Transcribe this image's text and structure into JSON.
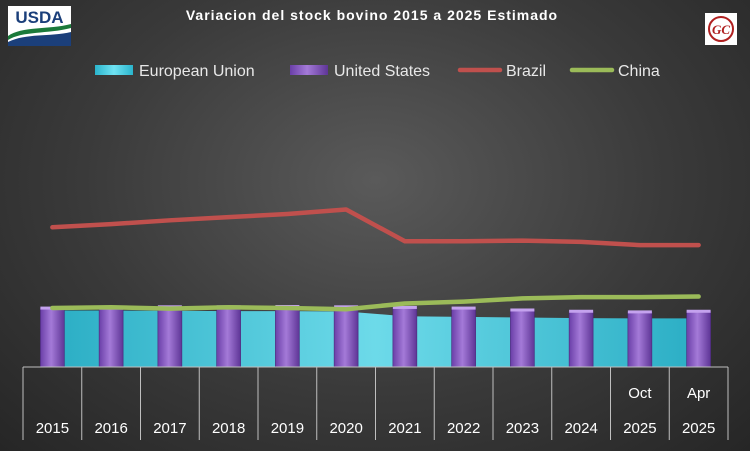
{
  "logos": {
    "left": "USDA",
    "right": "GC"
  },
  "chart_data": {
    "type": "bar",
    "title": "Variacion del stock bovino 2015 a 2025 Estimado",
    "categories": [
      "2015",
      "2016",
      "2017",
      "2018",
      "2019",
      "2020",
      "2021",
      "2022",
      "2023",
      "2024",
      "Oct 2025",
      "Apr 2025"
    ],
    "category_lines": [
      [
        "2015"
      ],
      [
        "2016"
      ],
      [
        "2017"
      ],
      [
        "2018"
      ],
      [
        "2019"
      ],
      [
        "2020"
      ],
      [
        "2021"
      ],
      [
        "2022"
      ],
      [
        "2023"
      ],
      [
        "2024"
      ],
      [
        "Oct",
        "2025"
      ],
      [
        "Apr",
        "2025"
      ]
    ],
    "series": [
      {
        "name": "European Union",
        "kind": "area",
        "color": "#3ec8e0",
        "values": [
          89,
          89,
          88.5,
          88,
          88,
          87.5,
          80,
          79,
          78,
          77,
          76.5,
          76.5
        ]
      },
      {
        "name": "United States",
        "kind": "bar",
        "color": "#8e5cc8",
        "values": [
          92,
          92,
          94,
          94,
          94.5,
          94,
          93,
          92,
          89,
          87,
          86,
          87
        ]
      },
      {
        "name": "Brazil",
        "kind": "line",
        "color": "#c0504d",
        "values": [
          220,
          225,
          231,
          236,
          241,
          248,
          198,
          198,
          199,
          197,
          192,
          192
        ]
      },
      {
        "name": "China",
        "kind": "line",
        "color": "#9bbb59",
        "values": [
          93,
          94,
          92,
          94,
          93,
          91,
          100,
          103,
          108,
          110,
          110,
          111
        ]
      }
    ],
    "ylim": [
      0,
      330
    ],
    "legend_position": "top",
    "grid": false
  }
}
